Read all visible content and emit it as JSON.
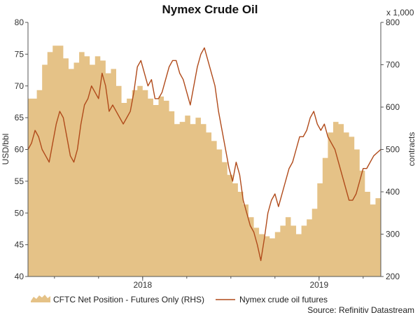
{
  "chart_data": {
    "type": "line",
    "title": "Nymex Crude Oil",
    "ylabel": "USD/bbl",
    "y2label": "contracts",
    "y2_multiplier_label": "x 1,000",
    "ylim": [
      40,
      80
    ],
    "y2lim": [
      200,
      800
    ],
    "y_ticks": [
      40,
      45,
      50,
      55,
      60,
      65,
      70,
      75,
      80
    ],
    "y2_ticks": [
      200,
      300,
      400,
      500,
      600,
      700,
      800
    ],
    "x_ticks": [
      {
        "label": "2018",
        "x": 2018.0
      },
      {
        "label": "2019",
        "x": 2019.0
      }
    ],
    "xlim": [
      2017.35,
      2019.35
    ],
    "grid": false,
    "legend_position": "bottom",
    "source": "Source: Refinitiv Datastream",
    "series": [
      {
        "name": "CFTC Net Position - Futures Only (RHS)",
        "type": "area",
        "axis": "right",
        "color": "#e5c287",
        "x": [
          2017.35,
          2017.4,
          2017.43,
          2017.46,
          2017.49,
          2017.52,
          2017.55,
          2017.58,
          2017.61,
          2017.64,
          2017.67,
          2017.7,
          2017.73,
          2017.76,
          2017.79,
          2017.82,
          2017.85,
          2017.88,
          2017.91,
          2017.94,
          2017.97,
          2018.0,
          2018.03,
          2018.06,
          2018.09,
          2018.12,
          2018.15,
          2018.18,
          2018.21,
          2018.24,
          2018.27,
          2018.3,
          2018.33,
          2018.36,
          2018.39,
          2018.42,
          2018.45,
          2018.48,
          2018.51,
          2018.54,
          2018.57,
          2018.6,
          2018.63,
          2018.66,
          2018.69,
          2018.72,
          2018.75,
          2018.78,
          2018.81,
          2018.84,
          2018.87,
          2018.9,
          2018.93,
          2018.96,
          2018.99,
          2019.02,
          2019.05,
          2019.08,
          2019.11,
          2019.14,
          2019.17,
          2019.2,
          2019.23,
          2019.26,
          2019.29,
          2019.32,
          2019.35
        ],
        "values": [
          620,
          640,
          700,
          730,
          745,
          745,
          715,
          690,
          705,
          730,
          720,
          700,
          720,
          710,
          680,
          690,
          650,
          610,
          620,
          640,
          650,
          640,
          620,
          605,
          625,
          615,
          590,
          560,
          565,
          580,
          560,
          575,
          560,
          540,
          520,
          500,
          470,
          440,
          420,
          400,
          370,
          340,
          315,
          300,
          295,
          290,
          305,
          320,
          340,
          320,
          300,
          320,
          335,
          360,
          420,
          480,
          540,
          565,
          560,
          540,
          530,
          500,
          450,
          400,
          370,
          385,
          385
        ]
      },
      {
        "name": "Nymex crude oil futures",
        "type": "line",
        "axis": "left",
        "color": "#b04a1a",
        "x": [
          2017.35,
          2017.37,
          2017.39,
          2017.41,
          2017.43,
          2017.45,
          2017.47,
          2017.49,
          2017.51,
          2017.53,
          2017.55,
          2017.57,
          2017.59,
          2017.61,
          2017.63,
          2017.65,
          2017.67,
          2017.69,
          2017.71,
          2017.73,
          2017.75,
          2017.77,
          2017.79,
          2017.81,
          2017.83,
          2017.85,
          2017.87,
          2017.89,
          2017.91,
          2017.93,
          2017.95,
          2017.97,
          2017.99,
          2018.01,
          2018.03,
          2018.05,
          2018.07,
          2018.09,
          2018.11,
          2018.13,
          2018.15,
          2018.17,
          2018.19,
          2018.21,
          2018.23,
          2018.25,
          2018.27,
          2018.29,
          2018.31,
          2018.33,
          2018.35,
          2018.37,
          2018.39,
          2018.41,
          2018.43,
          2018.45,
          2018.47,
          2018.49,
          2018.51,
          2018.53,
          2018.55,
          2018.57,
          2018.59,
          2018.61,
          2018.63,
          2018.65,
          2018.67,
          2018.69,
          2018.71,
          2018.73,
          2018.75,
          2018.77,
          2018.79,
          2018.81,
          2018.83,
          2018.85,
          2018.87,
          2018.89,
          2018.91,
          2018.93,
          2018.95,
          2018.97,
          2018.99,
          2019.01,
          2019.03,
          2019.05,
          2019.07,
          2019.09,
          2019.11,
          2019.13,
          2019.15,
          2019.17,
          2019.19,
          2019.21,
          2019.23,
          2019.25,
          2019.27,
          2019.29,
          2019.31,
          2019.33,
          2019.35
        ],
        "values": [
          60,
          61,
          63,
          62,
          60,
          59,
          58,
          61,
          64,
          66,
          65,
          62,
          59,
          58,
          60,
          64,
          67,
          68,
          70,
          69,
          68,
          72,
          70,
          66,
          67,
          66,
          65,
          64,
          65,
          66,
          69,
          73,
          74,
          72,
          70,
          71,
          68,
          68,
          69,
          71,
          73,
          74,
          74,
          72,
          71,
          69,
          67,
          70,
          73,
          75,
          76,
          74,
          72,
          70,
          66,
          63,
          60,
          57,
          55,
          58,
          56,
          52,
          50,
          48,
          47,
          45,
          42.5,
          46,
          50,
          52,
          53,
          51,
          53,
          55,
          57,
          58,
          60,
          62,
          62,
          63,
          65,
          66,
          64,
          63,
          64,
          62,
          61,
          60,
          58,
          56,
          54,
          52,
          52,
          53,
          55,
          57,
          57,
          58,
          59,
          59.5,
          60
        ]
      }
    ]
  }
}
